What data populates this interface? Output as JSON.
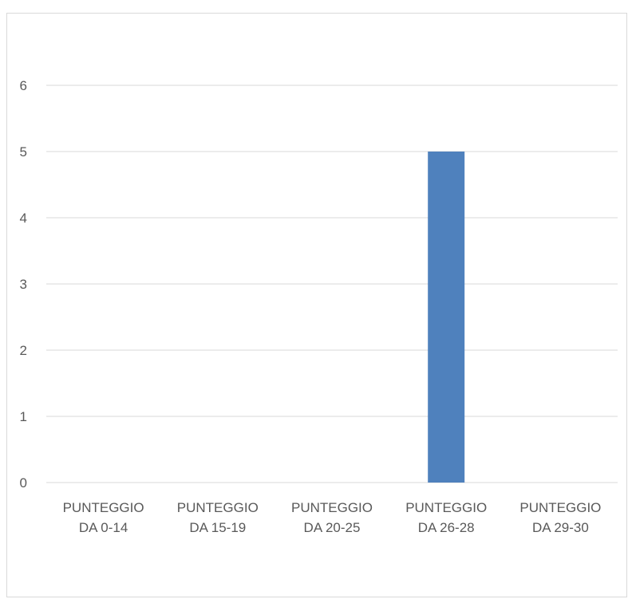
{
  "chart_data": {
    "type": "bar",
    "categories": [
      [
        "PUNTEGGIO",
        "DA 0-14"
      ],
      [
        "PUNTEGGIO",
        "DA 15-19"
      ],
      [
        "PUNTEGGIO",
        "DA 20-25"
      ],
      [
        "PUNTEGGIO",
        "DA 26-28"
      ],
      [
        "PUNTEGGIO",
        "DA 29-30"
      ]
    ],
    "values": [
      0,
      0,
      0,
      5,
      0
    ],
    "ylim": [
      0,
      6
    ],
    "yticks": [
      0,
      1,
      2,
      3,
      4,
      5,
      6
    ],
    "grid": true,
    "legend": "none",
    "title": "",
    "xlabel": "",
    "ylabel": "",
    "colors": {
      "bar": "#4f81bd",
      "grid": "#d9d9d9",
      "text": "#595959"
    }
  }
}
